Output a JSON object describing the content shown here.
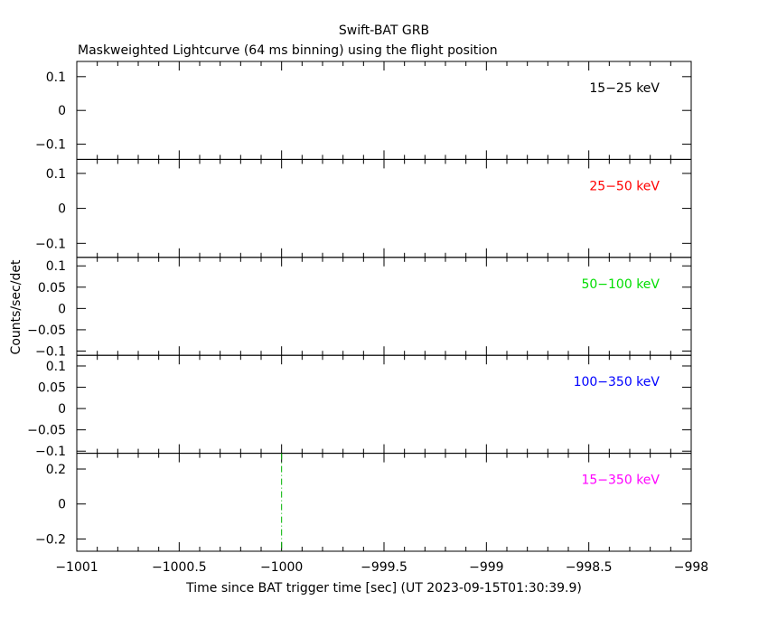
{
  "chart_data": {
    "type": "line",
    "title": "Swift-BAT GRB",
    "subtitle": "Maskweighted Lightcurve (64 ms binning) using the flight position",
    "xlabel": "Time since BAT trigger time [sec] (UT 2023-09-15T01:30:39.9)",
    "ylabel": "Counts/sec/det",
    "xlim": [
      -1001,
      -998
    ],
    "x_tick_labels": [
      "-1001",
      "-1000.5",
      "-1000",
      "-999.5",
      "-999",
      "-998.5",
      "-998"
    ],
    "x_ticks": [
      -1001,
      -1000.5,
      -1000,
      -999.5,
      -999,
      -998.5,
      -998
    ],
    "grid": false,
    "marker": {
      "x": -1000,
      "panel": 4,
      "style": "dash-dot",
      "color": "#00b400"
    },
    "panels": [
      {
        "label": "15−25 keV",
        "color": "#000000",
        "ylim": [
          -0.145,
          0.145
        ],
        "ticks": [
          0.1,
          0,
          -0.1
        ],
        "tick_labels": [
          "0.1",
          "0",
          "−0.1"
        ]
      },
      {
        "label": "25−50 keV",
        "color": "#ff0000",
        "ylim": [
          -0.14,
          0.14
        ],
        "ticks": [
          0.1,
          0,
          -0.1
        ],
        "tick_labels": [
          "0.1",
          "0",
          "−0.1"
        ]
      },
      {
        "label": "50−100 keV",
        "color": "#00dd00",
        "ylim": [
          -0.11,
          0.12
        ],
        "ticks": [
          0.1,
          0.05,
          0,
          -0.05,
          -0.1
        ],
        "tick_labels": [
          "0.1",
          "0.05",
          "0",
          "−0.05",
          "−0.1"
        ]
      },
      {
        "label": "100−350 keV",
        "color": "#0000ff",
        "ylim": [
          -0.105,
          0.125
        ],
        "ticks": [
          0.1,
          0.05,
          0,
          -0.05,
          -0.1
        ],
        "tick_labels": [
          "0.1",
          "0.05",
          "0",
          "−0.05",
          "−0.1"
        ]
      },
      {
        "label": "15−350 keV",
        "color": "#ff00ff",
        "ylim": [
          -0.27,
          0.29
        ],
        "ticks": [
          0.2,
          0,
          -0.2
        ],
        "tick_labels": [
          "0.2",
          "0",
          "−0.2"
        ]
      }
    ]
  }
}
